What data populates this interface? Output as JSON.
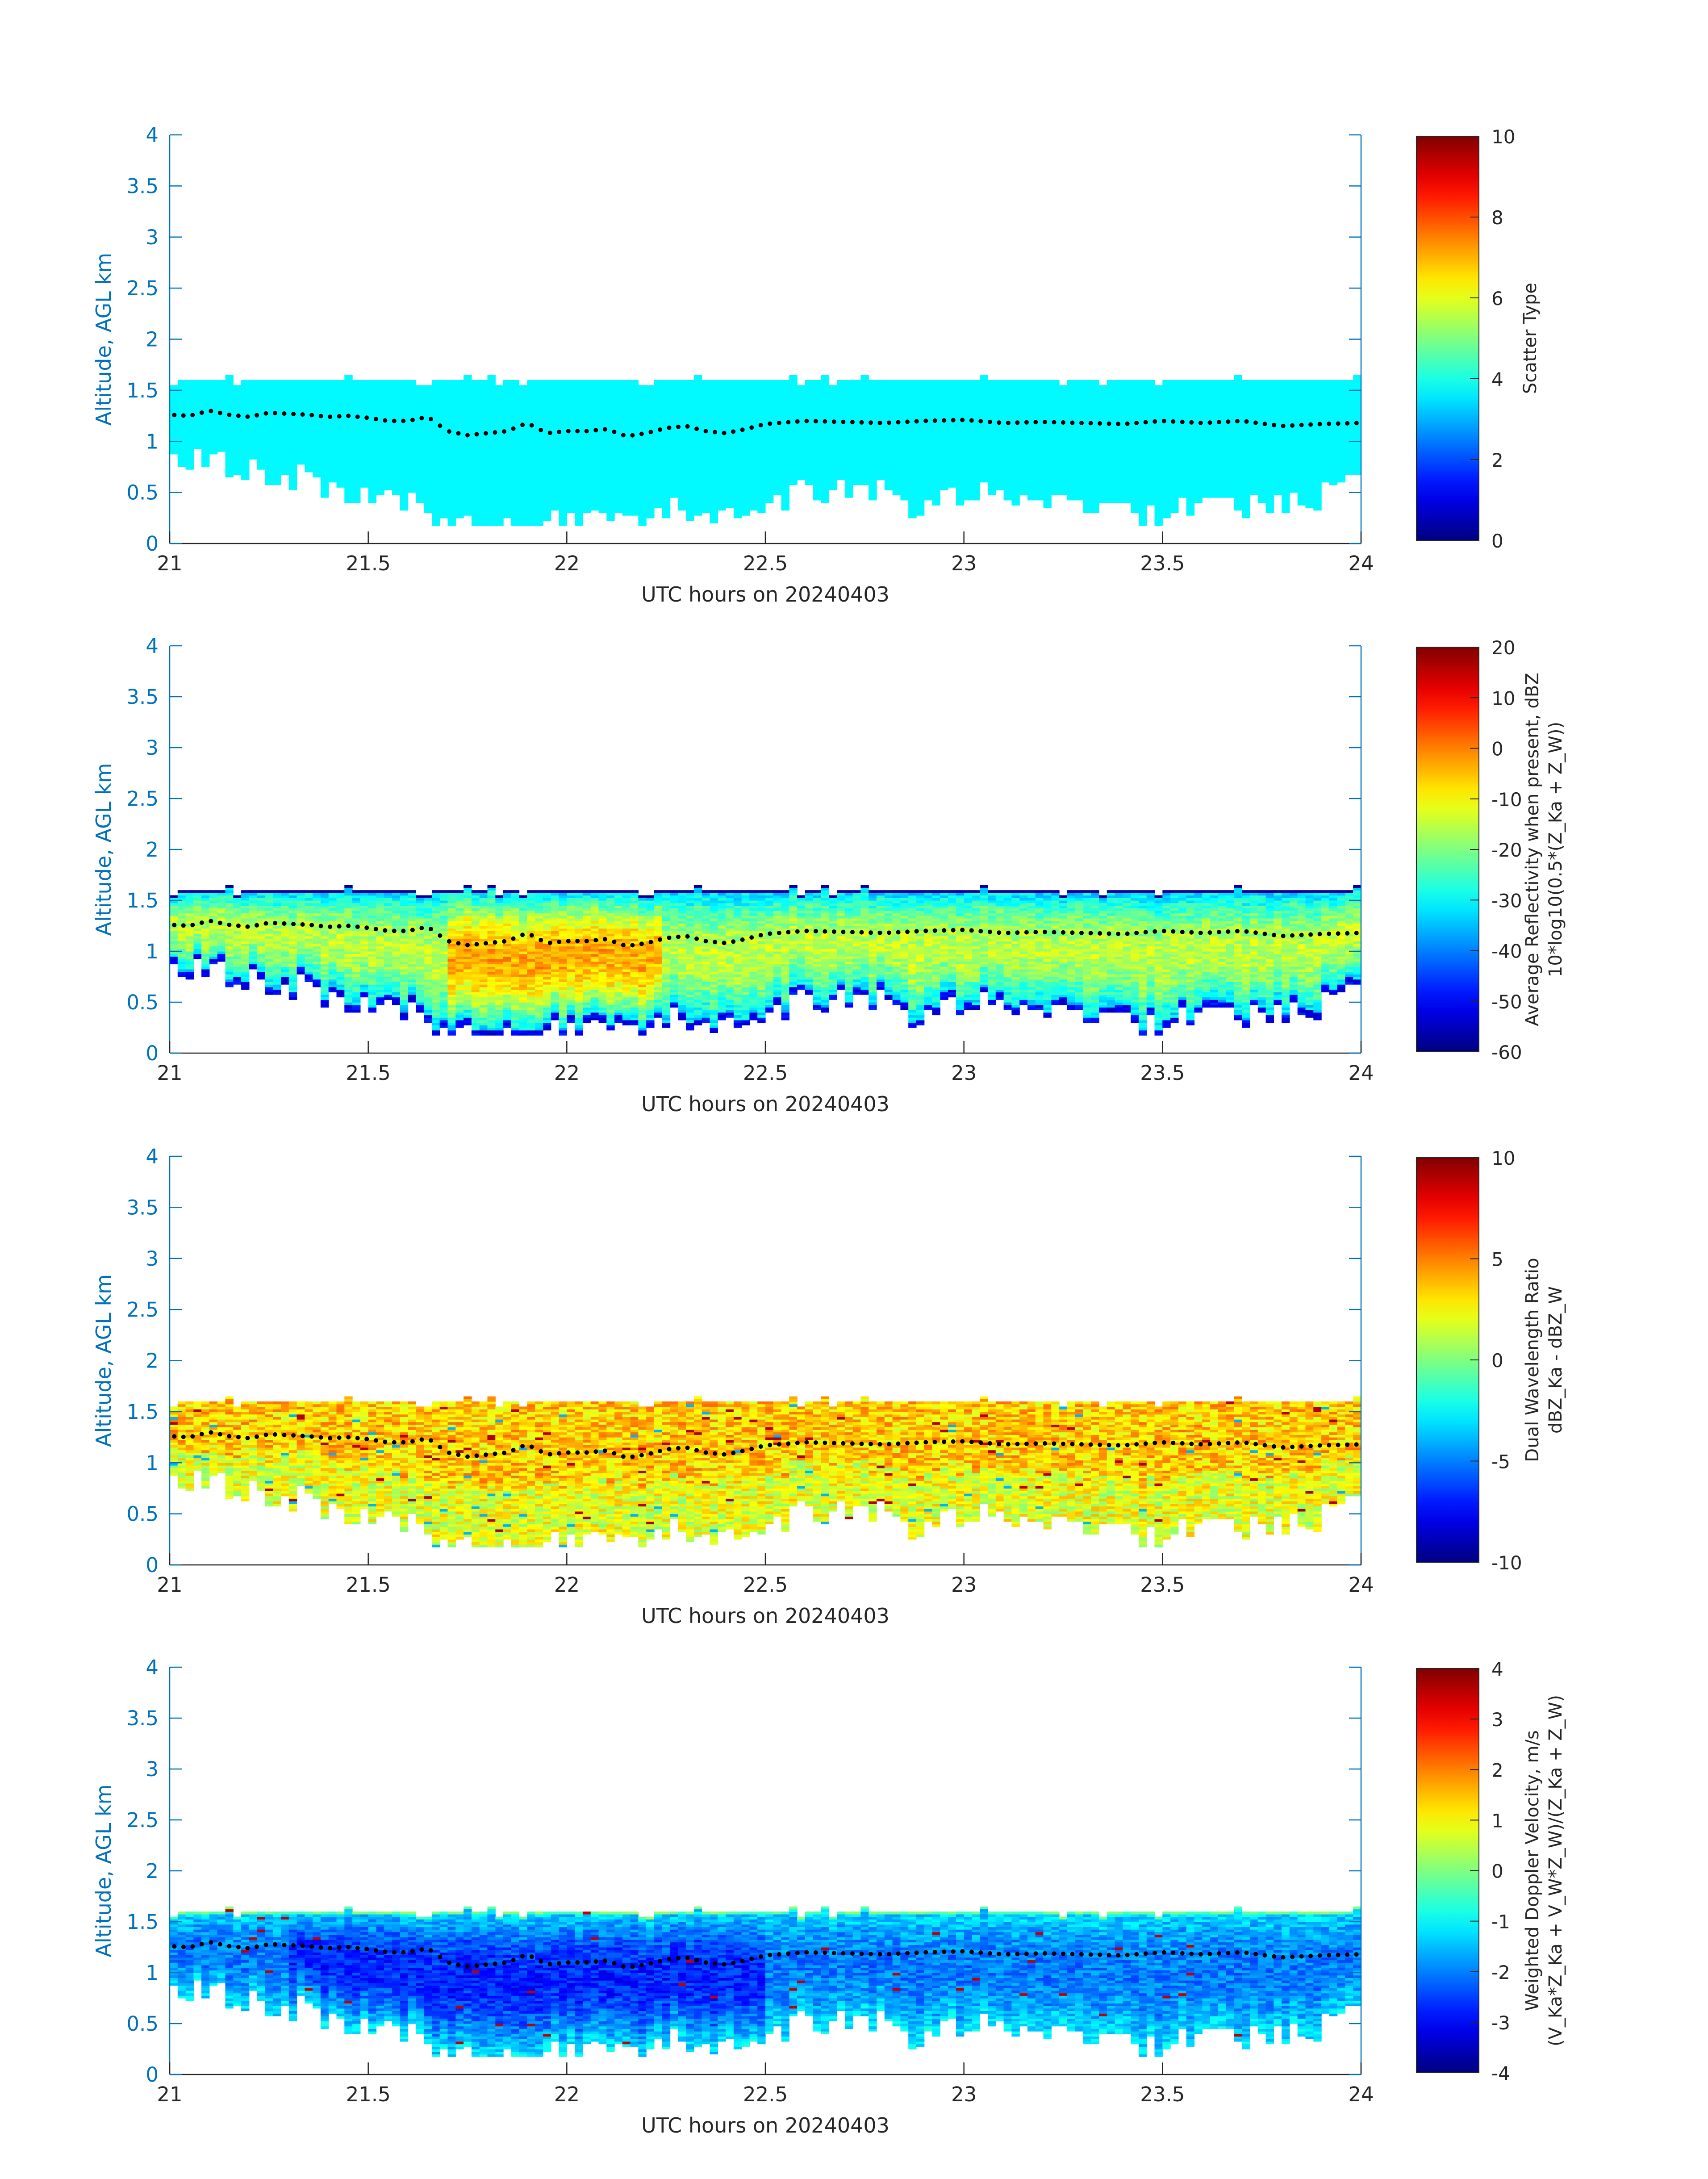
{
  "figure": {
    "axis_color": "#0072bd",
    "tick_text_color": "#0072bd",
    "xlabel_color": "#262626",
    "cbar_text_color": "#262626",
    "colormap": "jet",
    "boundary_dot_color": "#000000"
  },
  "chart_data": [
    {
      "type": "heatmap",
      "xlabel": "UTC hours on 20240403",
      "ylabel": "Altitude, AGL km",
      "xlim": [
        21,
        24
      ],
      "ylim": [
        0,
        4
      ],
      "xticks": [
        "21",
        "21.5",
        "22",
        "22.5",
        "23",
        "23.5",
        "24"
      ],
      "yticks": [
        "0",
        "0.5",
        "1",
        "1.5",
        "2",
        "2.5",
        "3",
        "3.5",
        "4"
      ],
      "colorbar": {
        "label_lines": [
          "Scatter Type"
        ],
        "range": [
          0,
          10
        ],
        "ticks": [
          "0",
          "2",
          "4",
          "6",
          "8",
          "10"
        ]
      },
      "field": "scatter_type",
      "grid": false
    },
    {
      "type": "heatmap",
      "xlabel": "UTC hours on 20240403",
      "ylabel": "Altitude, AGL km",
      "xlim": [
        21,
        24
      ],
      "ylim": [
        0,
        4
      ],
      "xticks": [
        "21",
        "21.5",
        "22",
        "22.5",
        "23",
        "23.5",
        "24"
      ],
      "yticks": [
        "0",
        "0.5",
        "1",
        "1.5",
        "2",
        "2.5",
        "3",
        "3.5",
        "4"
      ],
      "colorbar": {
        "label_lines": [
          "Average Reflectivity when present, dBZ",
          "10*log10(0.5*(Z_Ka + Z_W))"
        ],
        "range": [
          -60,
          20
        ],
        "ticks": [
          "-60",
          "-50",
          "-40",
          "-30",
          "-20",
          "-10",
          "0",
          "10",
          "20"
        ]
      },
      "field": "reflectivity",
      "grid": false
    },
    {
      "type": "heatmap",
      "xlabel": "UTC hours on 20240403",
      "ylabel": "Altitude, AGL km",
      "xlim": [
        21,
        24
      ],
      "ylim": [
        0,
        4
      ],
      "xticks": [
        "21",
        "21.5",
        "22",
        "22.5",
        "23",
        "23.5",
        "24"
      ],
      "yticks": [
        "0",
        "0.5",
        "1",
        "1.5",
        "2",
        "2.5",
        "3",
        "3.5",
        "4"
      ],
      "colorbar": {
        "label_lines": [
          "Dual Wavelength Ratio",
          "dBZ_Ka - dBZ_W"
        ],
        "range": [
          -10,
          10
        ],
        "ticks": [
          "-10",
          "-5",
          "0",
          "5",
          "10"
        ]
      },
      "field": "dwr",
      "grid": false
    },
    {
      "type": "heatmap",
      "xlabel": "UTC hours on 20240403",
      "ylabel": "Altitude, AGL km",
      "xlim": [
        21,
        24
      ],
      "ylim": [
        0,
        4
      ],
      "xticks": [
        "21",
        "21.5",
        "22",
        "22.5",
        "23",
        "23.5",
        "24"
      ],
      "yticks": [
        "0",
        "0.5",
        "1",
        "1.5",
        "2",
        "2.5",
        "3",
        "3.5",
        "4"
      ],
      "colorbar": {
        "label_lines": [
          "Weighted Doppler Velocity, m/s",
          "(V_Ka*Z_Ka + V_W*Z_W)/(Z_Ka + Z_W)"
        ],
        "range": [
          -4,
          4
        ],
        "ticks": [
          "-4",
          "-3",
          "-2",
          "-1",
          "0",
          "1",
          "2",
          "3",
          "4"
        ]
      },
      "field": "doppler_velocity",
      "grid": false
    }
  ],
  "cloud_layer": {
    "time_range": [
      21,
      24
    ],
    "top_km": 1.6,
    "base_km_keyframes": [
      [
        21.0,
        0.9
      ],
      [
        21.1,
        0.85
      ],
      [
        21.2,
        0.75
      ],
      [
        21.3,
        0.7
      ],
      [
        21.4,
        0.6
      ],
      [
        21.5,
        0.45
      ],
      [
        21.6,
        0.4
      ],
      [
        21.7,
        0.25
      ],
      [
        21.8,
        0.2
      ],
      [
        22.0,
        0.2
      ],
      [
        22.2,
        0.2
      ],
      [
        22.3,
        0.35
      ],
      [
        22.4,
        0.2
      ],
      [
        22.5,
        0.4
      ],
      [
        22.6,
        0.5
      ],
      [
        22.7,
        0.55
      ],
      [
        22.8,
        0.5
      ],
      [
        22.9,
        0.35
      ],
      [
        23.0,
        0.5
      ],
      [
        23.1,
        0.45
      ],
      [
        23.2,
        0.35
      ],
      [
        23.3,
        0.4
      ],
      [
        23.4,
        0.3
      ],
      [
        23.5,
        0.25
      ],
      [
        23.6,
        0.45
      ],
      [
        23.7,
        0.4
      ],
      [
        23.8,
        0.45
      ],
      [
        23.9,
        0.5
      ],
      [
        24.0,
        0.6
      ]
    ],
    "boundary_dots_km": [
      [
        21.0,
        1.26
      ],
      [
        21.05,
        1.25
      ],
      [
        21.1,
        1.3
      ],
      [
        21.15,
        1.26
      ],
      [
        21.2,
        1.24
      ],
      [
        21.25,
        1.28
      ],
      [
        21.3,
        1.27
      ],
      [
        21.35,
        1.26
      ],
      [
        21.4,
        1.24
      ],
      [
        21.45,
        1.25
      ],
      [
        21.5,
        1.23
      ],
      [
        21.55,
        1.2
      ],
      [
        21.6,
        1.2
      ],
      [
        21.65,
        1.24
      ],
      [
        21.7,
        1.1
      ],
      [
        21.75,
        1.06
      ],
      [
        21.8,
        1.08
      ],
      [
        21.85,
        1.1
      ],
      [
        21.9,
        1.18
      ],
      [
        21.95,
        1.08
      ],
      [
        22.0,
        1.1
      ],
      [
        22.05,
        1.1
      ],
      [
        22.1,
        1.12
      ],
      [
        22.15,
        1.05
      ],
      [
        22.2,
        1.08
      ],
      [
        22.25,
        1.13
      ],
      [
        22.3,
        1.15
      ],
      [
        22.35,
        1.1
      ],
      [
        22.4,
        1.08
      ],
      [
        22.45,
        1.12
      ],
      [
        22.5,
        1.17
      ],
      [
        22.6,
        1.2
      ],
      [
        22.7,
        1.19
      ],
      [
        22.8,
        1.18
      ],
      [
        22.9,
        1.2
      ],
      [
        23.0,
        1.21
      ],
      [
        23.1,
        1.18
      ],
      [
        23.2,
        1.19
      ],
      [
        23.3,
        1.18
      ],
      [
        23.4,
        1.17
      ],
      [
        23.5,
        1.2
      ],
      [
        23.6,
        1.18
      ],
      [
        23.7,
        1.2
      ],
      [
        23.8,
        1.15
      ],
      [
        23.9,
        1.17
      ],
      [
        24.0,
        1.18
      ]
    ]
  }
}
